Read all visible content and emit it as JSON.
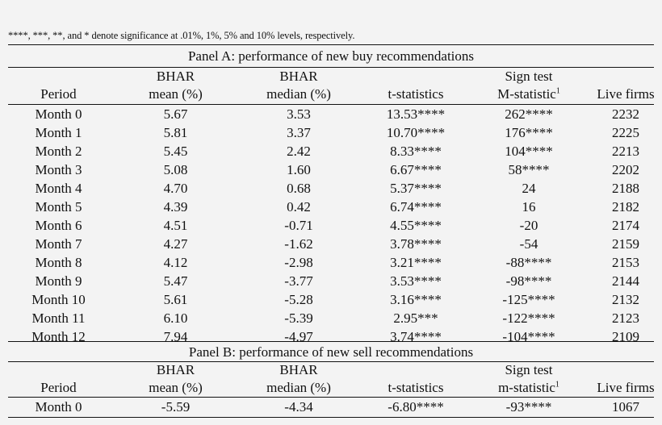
{
  "note": "****, ***, **, and * denote significance at .01%, 1%, 5% and 10% levels, respectively.",
  "panel_a": {
    "title": "Panel A: performance of new buy recommendations",
    "header_top": [
      "",
      "BHAR",
      "BHAR",
      "",
      "Sign test",
      ""
    ],
    "header_bottom": [
      "Period",
      "mean (%)",
      "median (%)",
      "t-statistics",
      "M-statistic",
      "Live firms"
    ],
    "header_sup": "1",
    "rows": [
      [
        "Month 0",
        "5.67",
        "3.53",
        "13.53****",
        "262****",
        "2232"
      ],
      [
        "Month 1",
        "5.81",
        "3.37",
        "10.70****",
        "176****",
        "2225"
      ],
      [
        "Month 2",
        "5.45",
        "2.42",
        "8.33****",
        "104****",
        "2213"
      ],
      [
        "Month 3",
        "5.08",
        "1.60",
        "6.67****",
        "58****",
        "2202"
      ],
      [
        "Month 4",
        "4.70",
        "0.68",
        "5.37****",
        "24",
        "2188"
      ],
      [
        "Month 5",
        "4.39",
        "0.42",
        "6.74****",
        "16",
        "2182"
      ],
      [
        "Month 6",
        "4.51",
        "-0.71",
        "4.55****",
        "-20",
        "2174"
      ],
      [
        "Month 7",
        "4.27",
        "-1.62",
        "3.78****",
        "-54",
        "2159"
      ],
      [
        "Month 8",
        "4.12",
        "-2.98",
        "3.21****",
        "-88****",
        "2153"
      ],
      [
        "Month 9",
        "5.47",
        "-3.77",
        "3.53****",
        "-98****",
        "2144"
      ],
      [
        "Month 10",
        "5.61",
        "-5.28",
        "3.16****",
        "-125****",
        "2132"
      ],
      [
        "Month 11",
        "6.10",
        "-5.39",
        "2.95***",
        "-122****",
        "2123"
      ],
      [
        "Month 12",
        "7.94",
        "-4.97",
        "3.74****",
        "-104****",
        "2109"
      ]
    ]
  },
  "panel_b": {
    "title": "Panel B: performance of new sell recommendations",
    "header_top": [
      "",
      "BHAR",
      "BHAR",
      "",
      "Sign test",
      ""
    ],
    "header_bottom": [
      "Period",
      "mean (%)",
      "median (%)",
      "t-statistics",
      "m-statistic",
      "Live firms"
    ],
    "header_sup": "1",
    "rows": [
      [
        "Month 0",
        "-5.59",
        "-4.34",
        "-6.80****",
        "-93****",
        "1067"
      ]
    ]
  }
}
